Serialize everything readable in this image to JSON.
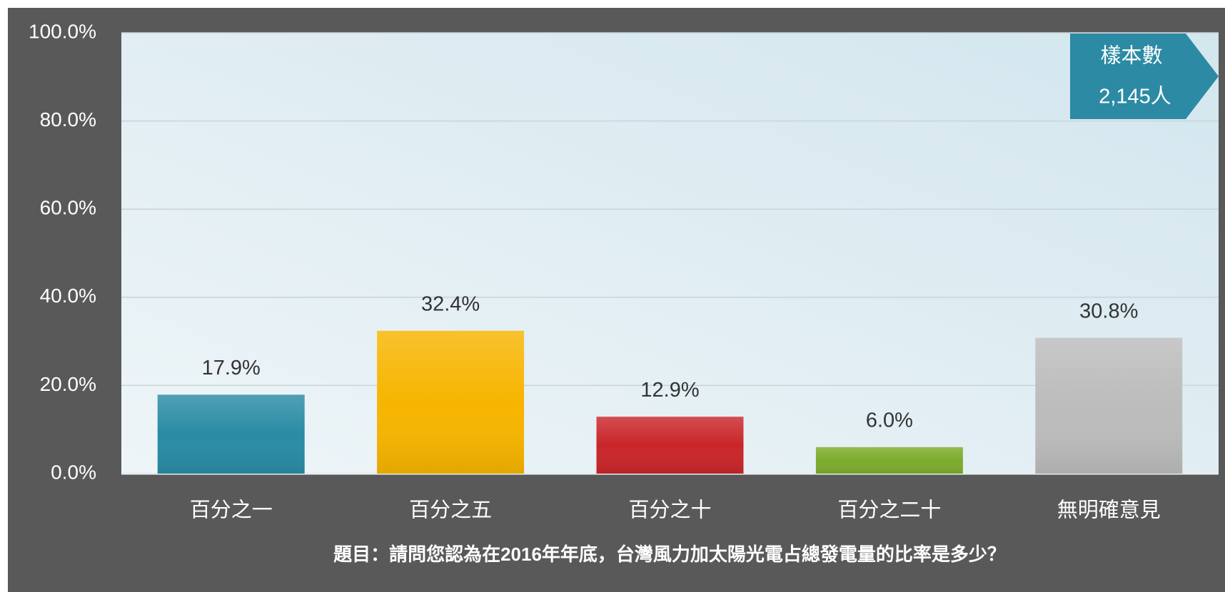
{
  "chart_data": {
    "type": "bar",
    "categories": [
      "百分之一",
      "百分之五",
      "百分之十",
      "百分之二十",
      "無明確意見"
    ],
    "values": [
      17.9,
      32.4,
      12.9,
      6.0,
      30.8
    ],
    "value_labels": [
      "17.9%",
      "32.4%",
      "12.9%",
      "6.0%",
      "30.8%"
    ],
    "colors": [
      "#2a8ba5",
      "#f7b500",
      "#c9262a",
      "#7cab2c",
      "#bcbcbc"
    ],
    "ylim": [
      0,
      100
    ],
    "yticks": [
      {
        "value": 0,
        "label": "0.0%"
      },
      {
        "value": 20,
        "label": "20.0%"
      },
      {
        "value": 40,
        "label": "40.0%"
      },
      {
        "value": 60,
        "label": "60.0%"
      },
      {
        "value": 80,
        "label": "80.0%"
      },
      {
        "value": 100,
        "label": "100.0%"
      }
    ],
    "grid": true,
    "annotation": [
      "樣本數",
      "2,145人"
    ],
    "xlabel": "題目：請問您認為在2016年年底，台灣風力加太陽光電占總發電量的比率是多少？"
  }
}
